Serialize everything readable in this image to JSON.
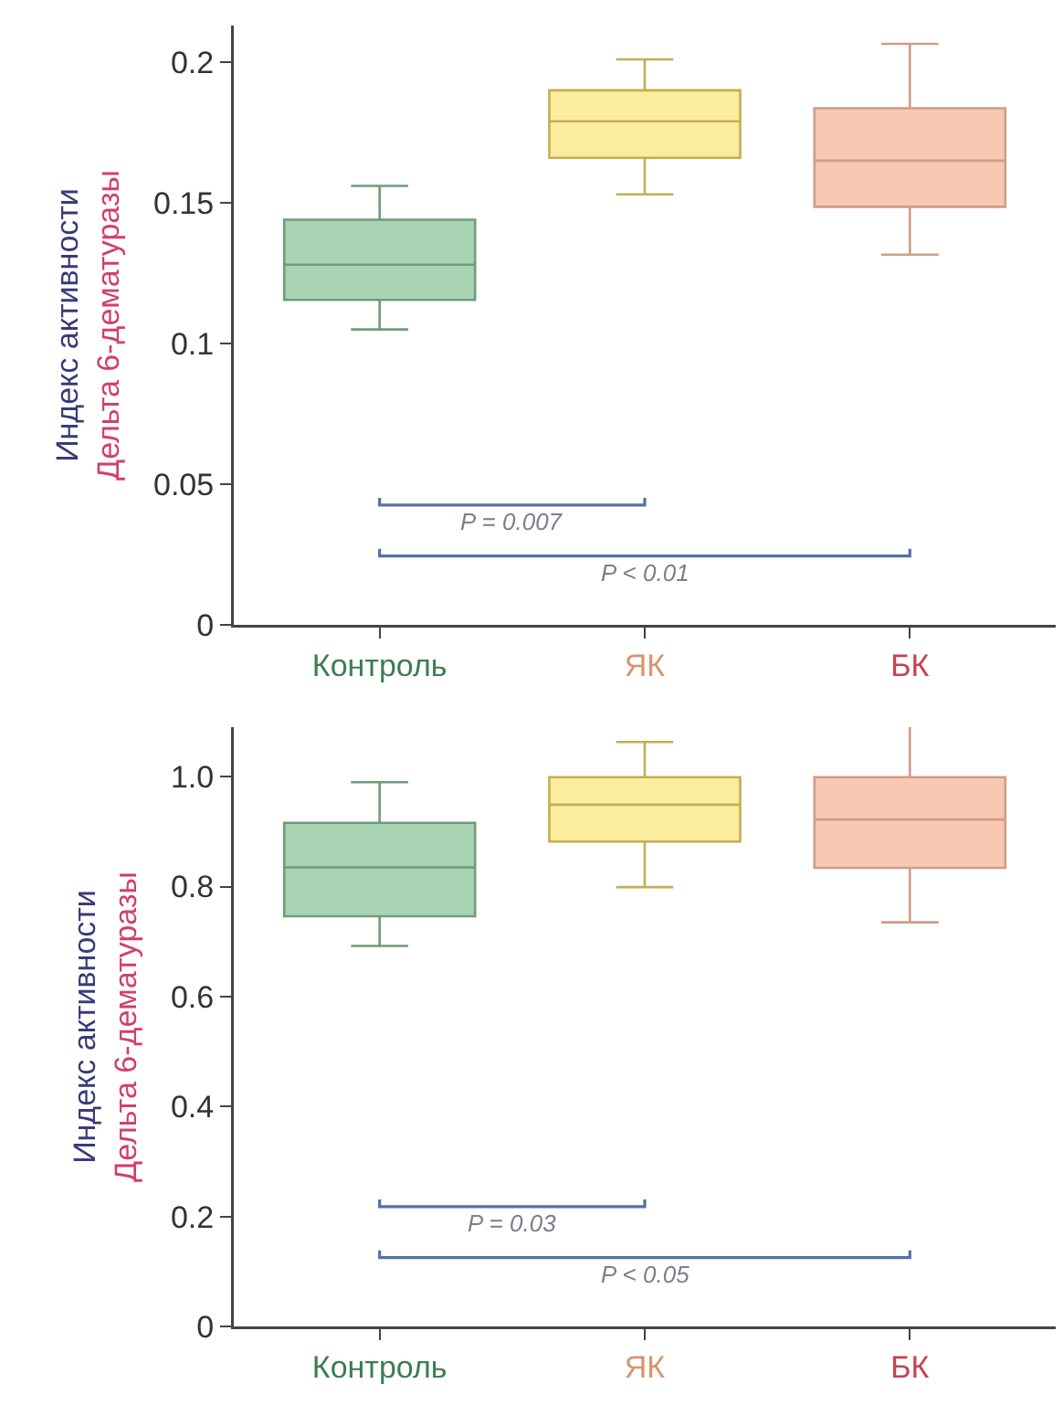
{
  "chart_data": [
    {
      "type": "box",
      "ylabel": "Индекс активности\nДельта 6-дематуразы",
      "categories": [
        "Контроль",
        "ЯК",
        "БК"
      ],
      "colors": [
        "#a8d4b4",
        "#fbec9e",
        "#f8c8b2"
      ],
      "boxes": [
        {
          "low": 0.105,
          "q1": 0.1155,
          "median": 0.128,
          "q3": 0.144,
          "high": 0.156
        },
        {
          "low": 0.153,
          "q1": 0.166,
          "median": 0.179,
          "q3": 0.19,
          "high": 0.201
        },
        {
          "low": 0.1316,
          "q1": 0.1486,
          "median": 0.165,
          "q3": 0.1836,
          "high": 0.2065
        }
      ],
      "ylim": [
        0,
        0.213
      ],
      "yticks": [
        0,
        0.05,
        0.1,
        0.15,
        0.2
      ],
      "grid": false,
      "legend": false,
      "annotations": [
        "P = 0.007",
        "P < 0.01"
      ]
    },
    {
      "type": "box",
      "ylabel": "Индекс активности\nДельта 6-дематуразы",
      "categories": [
        "Контроль",
        "ЯК",
        "БК"
      ],
      "colors": [
        "#a8d4b4",
        "#fbec9e",
        "#f8c8b2"
      ],
      "boxes": [
        {
          "low": 0.692,
          "q1": 0.746,
          "median": 0.835,
          "q3": 0.916,
          "high": 0.99
        },
        {
          "low": 0.799,
          "q1": 0.882,
          "median": 0.949,
          "q3": 0.999,
          "high": 1.063
        },
        {
          "low": 0.735,
          "q1": 0.834,
          "median": 0.922,
          "q3": 0.999,
          "high": 1.134
        }
      ],
      "ylim": [
        0,
        1.09
      ],
      "yticks": [
        0,
        0.2,
        0.4,
        0.6,
        0.8,
        {
          "value": 1,
          "label": "1.0"
        }
      ],
      "grid": false,
      "legend": false,
      "annotations": [
        "P = 0.03",
        "P < 0.05"
      ]
    }
  ]
}
